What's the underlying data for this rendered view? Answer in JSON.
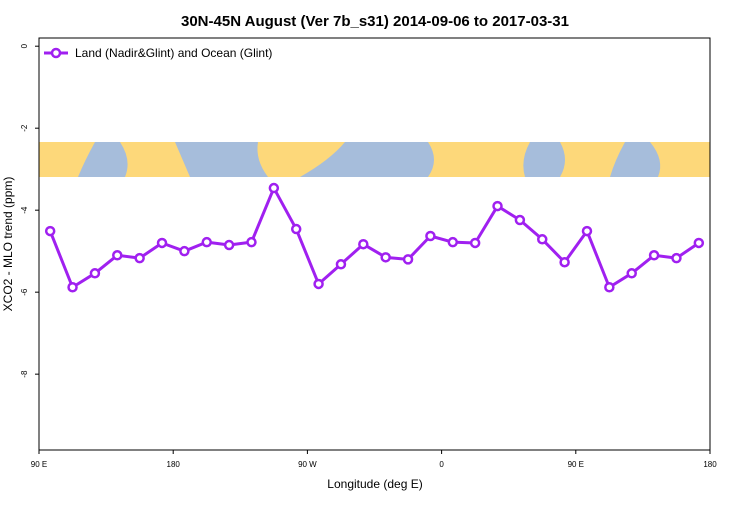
{
  "chart_data": {
    "type": "line",
    "title": "30N-45N August (Ver 7b_s31)   2014-09-06 to 2017-03-31",
    "x_label": "Longitude (deg E)",
    "y_label": "XCO2 - MLO trend (ppm)",
    "x": [
      97.5,
      112.5,
      127.5,
      142.5,
      157.5,
      172.5,
      187.5,
      202.5,
      217.5,
      232.5,
      247.5,
      262.5,
      277.5,
      292.5,
      307.5,
      322.5,
      337.5,
      352.5,
      367.5,
      382.5,
      397.5,
      412.5,
      427.5,
      442.5,
      457.5,
      472.5,
      487.5,
      502.5,
      517.5,
      532.5
    ],
    "series": [
      {
        "name": "Land (Nadir&Glint) and Ocean (Glint)",
        "color": "#a020f0",
        "values": [
          -4.51,
          -5.88,
          -5.54,
          -5.1,
          -5.17,
          -4.8,
          -5.0,
          -4.78,
          -4.85,
          -4.78,
          -3.46,
          -4.46,
          -5.8,
          -5.32,
          -4.83,
          -5.15,
          -5.2,
          -4.63,
          -4.78,
          -4.8,
          -3.9,
          -4.24,
          -4.71,
          -5.27,
          -4.51,
          -5.88,
          -5.54,
          -5.1,
          -5.17,
          -4.8
        ]
      }
    ],
    "xlim": [
      90,
      540
    ],
    "xticks": [
      {
        "value": 90,
        "label": "90 E"
      },
      180,
      {
        "value": 270,
        "label": "90 W"
      },
      {
        "value": 360,
        "label": "0"
      },
      {
        "value": 450,
        "label": "90 E"
      },
      {
        "value": 540,
        "label": "180"
      }
    ],
    "ylim": [
      -9.85,
      0.2
    ],
    "yticks": [
      0,
      -2,
      -4,
      -6,
      -8
    ],
    "legend": "top-left"
  }
}
